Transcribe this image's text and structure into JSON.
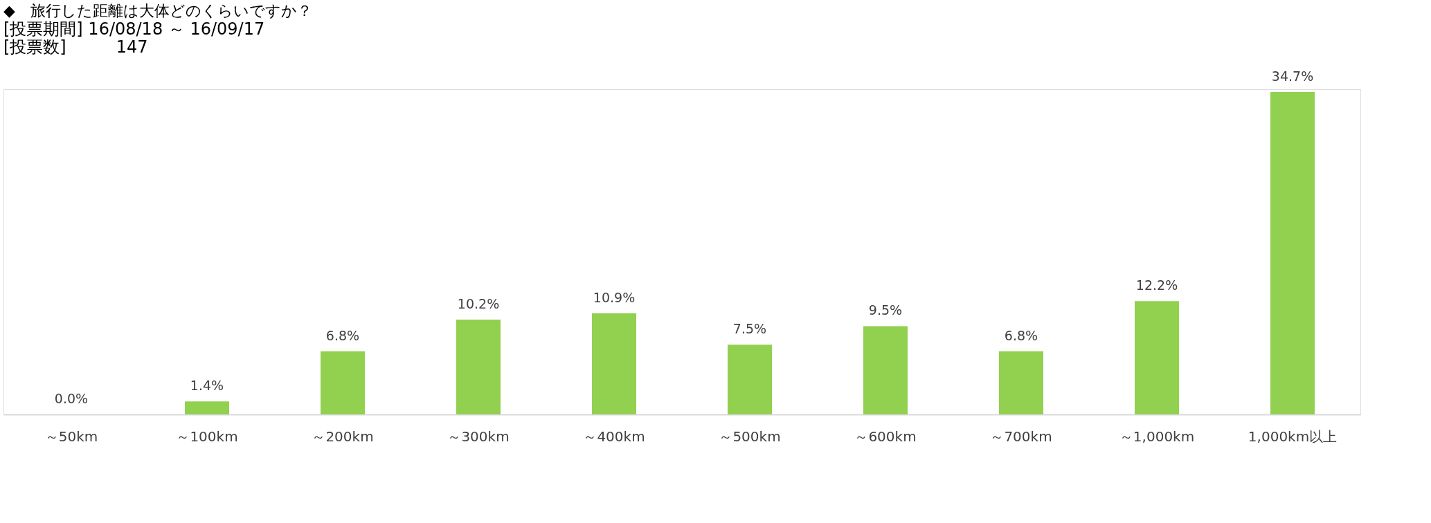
{
  "chart_data": {
    "type": "bar",
    "title": "◆　旅行した距離は大体どのくらいですか？",
    "subtitle": "[投票期間] 16/08/18 ～ 16/09/17",
    "annotations": [
      "[投票数]　　　147"
    ],
    "categories": [
      "～50km",
      "～100km",
      "～200km",
      "～300km",
      "～400km",
      "～500km",
      "～600km",
      "～700km",
      "～1,000km",
      "1,000km以上"
    ],
    "values": [
      0.0,
      1.4,
      6.8,
      10.2,
      10.9,
      7.5,
      9.5,
      6.8,
      12.2,
      34.7
    ],
    "value_labels": [
      "0.0%",
      "1.4%",
      "6.8%",
      "10.2%",
      "10.9%",
      "7.5%",
      "9.5%",
      "6.8%",
      "12.2%",
      "34.7%"
    ],
    "color": "#92d050",
    "grid": false
  }
}
